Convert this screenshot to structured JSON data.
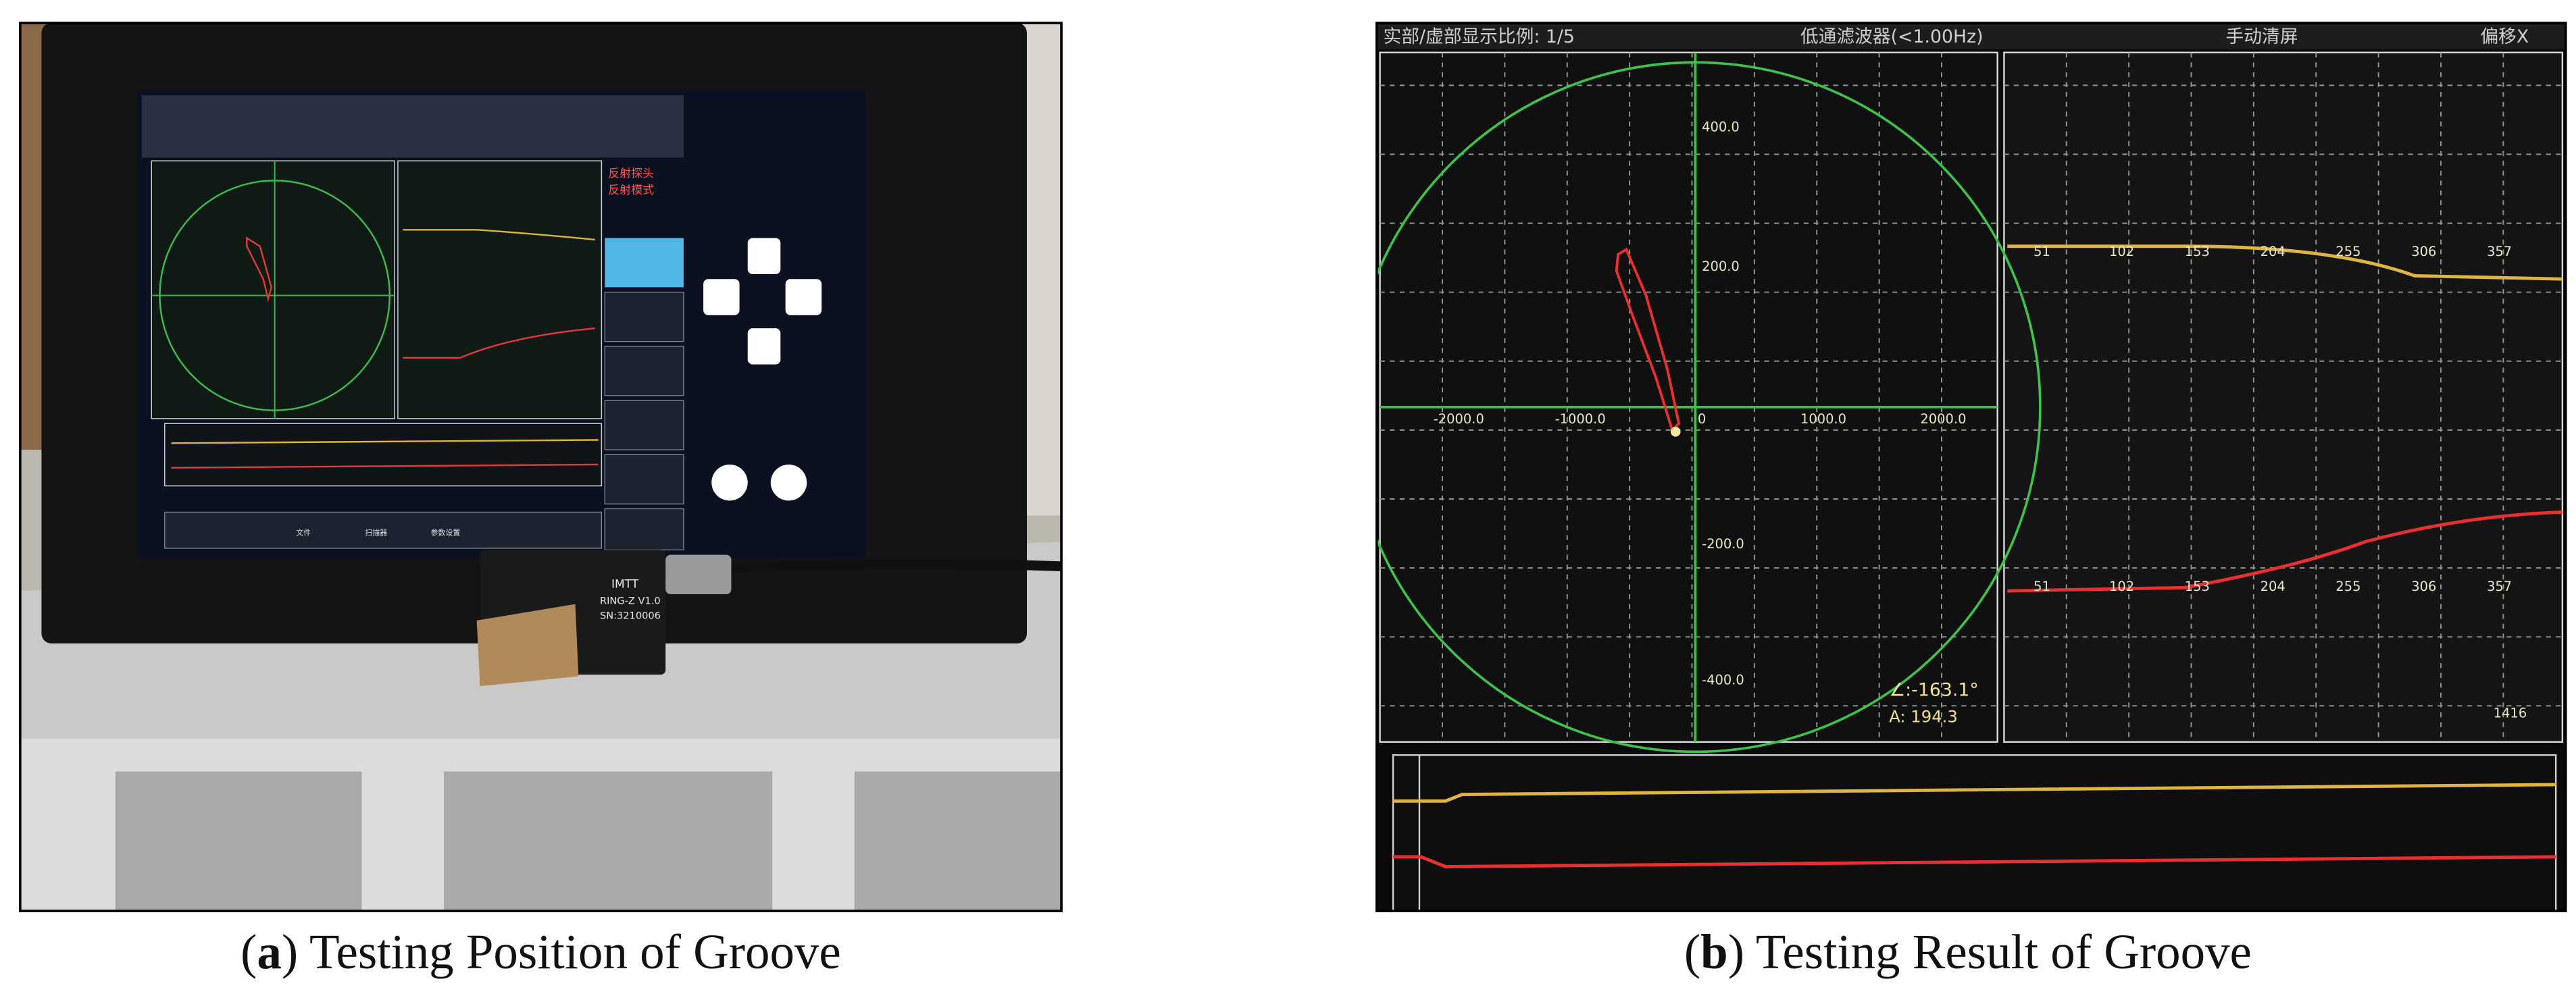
{
  "panel_a": {
    "screen_side": [
      "反射探头",
      "反射模式"
    ],
    "screen_buttons": [
      "文件",
      "扫描器",
      "参数设置"
    ],
    "sensor": [
      "IMTT",
      "RING-Z V1.0",
      "SN:3210006"
    ]
  },
  "panel_b": {
    "top_bar": [
      "实部/虚部显示比例: 1/5",
      "低通滤波器(<1.00Hz)",
      "手动清屏",
      "偏移X"
    ],
    "x_labels": [
      "-2000.0",
      "-1000.0",
      "0",
      "1000.0",
      "2000.0"
    ],
    "y_labels": [
      "400.0",
      "200.0",
      "-200.0",
      "-400.0"
    ],
    "angle": "∠:-163.1°",
    "amplitude": "A: 194.3",
    "trace_ticks": [
      "51",
      "102",
      "153",
      "204",
      "255",
      "306",
      "357"
    ],
    "count": "1416"
  },
  "captions": [
    {
      "open": "(",
      "letter": "a",
      "rest": ") Testing Position of Groove"
    },
    {
      "open": "(",
      "letter": "b",
      "rest": ") Testing Result of Groove"
    }
  ]
}
